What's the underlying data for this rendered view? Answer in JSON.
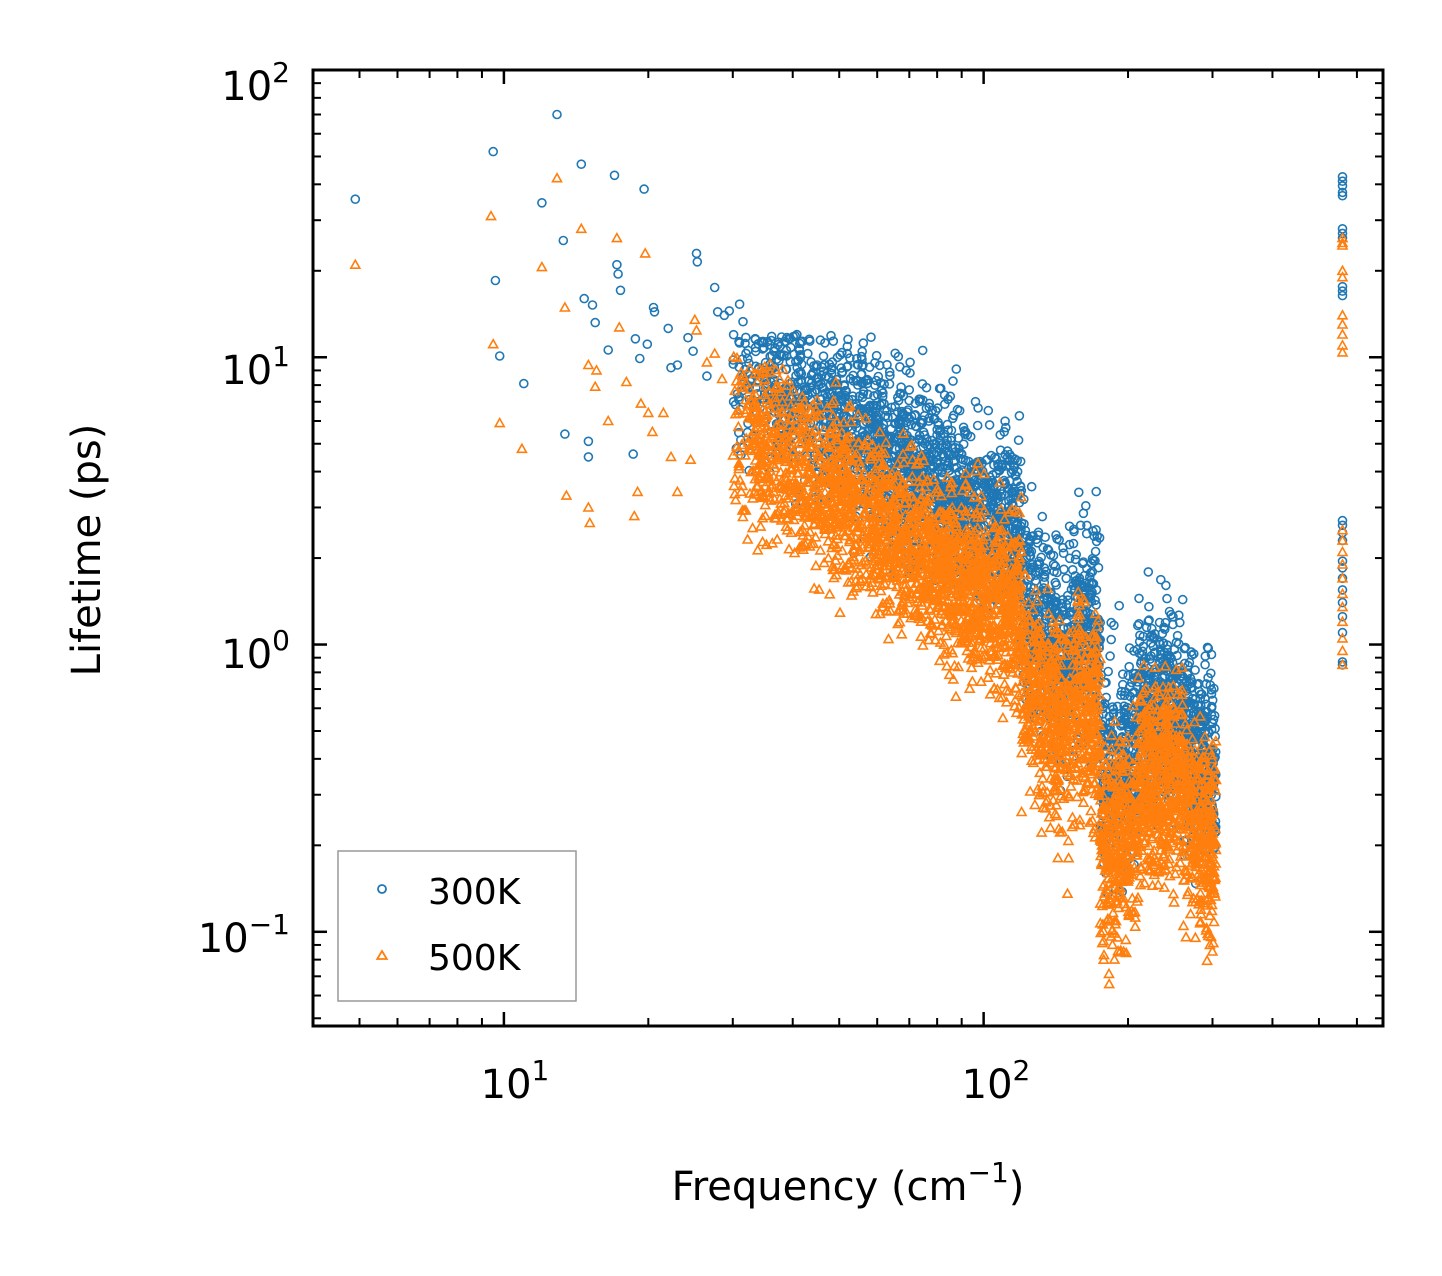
{
  "chart_data": {
    "type": "scatter",
    "title": "",
    "xlabel": "Frequency (cm",
    "xlabel_sup": "−1",
    "xlabel_end": ")",
    "ylabel": "Lifetime (ps)",
    "xscale": "log",
    "yscale": "log",
    "xlim": [
      4,
      680
    ],
    "ylim": [
      0.047,
      100
    ],
    "x_ticks": [
      {
        "value": 10,
        "base": "10",
        "exp": "1"
      },
      {
        "value": 100,
        "base": "10",
        "exp": "2"
      }
    ],
    "y_ticks": [
      {
        "value": 0.1,
        "base": "10",
        "exp": "−1"
      },
      {
        "value": 1,
        "base": "10",
        "exp": "0"
      },
      {
        "value": 10,
        "base": "10",
        "exp": "1"
      },
      {
        "value": 100,
        "base": "10",
        "exp": "2"
      }
    ],
    "legend_position": "lower-left",
    "series": [
      {
        "name": "300K",
        "marker": "circle",
        "color": "#1f77b4",
        "points": [
          [
            4.9,
            35.5
          ],
          [
            9.5,
            52
          ],
          [
            9.6,
            18.5
          ],
          [
            9.8,
            10.1
          ],
          [
            11.0,
            8.1
          ],
          [
            12.0,
            34.5
          ],
          [
            12.9,
            70
          ],
          [
            13.3,
            25.5
          ],
          [
            13.4,
            5.4
          ],
          [
            14.5,
            47
          ],
          [
            14.7,
            16
          ],
          [
            15.0,
            5.1
          ],
          [
            15.0,
            4.5
          ],
          [
            15.3,
            15.2
          ],
          [
            15.5,
            13.2
          ],
          [
            16.5,
            10.6
          ],
          [
            17.0,
            43
          ],
          [
            17.2,
            21
          ],
          [
            17.3,
            19.5
          ],
          [
            17.5,
            17.1
          ],
          [
            18.6,
            4.6
          ],
          [
            18.8,
            11.6
          ],
          [
            19.2,
            9.9
          ],
          [
            19.6,
            38.5
          ],
          [
            19.9,
            11.1
          ],
          [
            20.5,
            14.9
          ],
          [
            20.6,
            14.4
          ],
          [
            22.0,
            12.6
          ],
          [
            22.3,
            9.2
          ],
          [
            23.0,
            9.4
          ],
          [
            24.2,
            11.7
          ],
          [
            24.8,
            10.5
          ],
          [
            25.2,
            23
          ],
          [
            25.3,
            21.5
          ],
          [
            26.5,
            8.6
          ],
          [
            27.5,
            17.5
          ],
          [
            27.9,
            14.4
          ],
          [
            28.8,
            14.0
          ],
          [
            29.5,
            14.5
          ],
          [
            31.0,
            15.3
          ],
          [
            31.5,
            13.3
          ],
          [
            33.5,
            9.3
          ],
          [
            34.0,
            9.2
          ],
          [
            36.0,
            8.2
          ],
          [
            38.5,
            7.8
          ],
          [
            41.5,
            10.2
          ],
          [
            43.0,
            10.3
          ],
          [
            46.5,
            9.4
          ],
          [
            47.0,
            8.6
          ],
          [
            56.0,
            6.4
          ],
          [
            58.0,
            6.8
          ],
          [
            62.0,
            6.9
          ],
          [
            70.0,
            7.7
          ],
          [
            77.0,
            6.7
          ],
          [
            90.0,
            4.6
          ],
          [
            120.0,
            2.65
          ],
          [
            560.0,
            42.5
          ],
          [
            560.0,
            41.0
          ],
          [
            560.0,
            39.5
          ],
          [
            560.0,
            37.5
          ],
          [
            560.0,
            36.5
          ],
          [
            560.0,
            28.0
          ],
          [
            560.0,
            27.0
          ],
          [
            560.0,
            26.0
          ],
          [
            560.0,
            17.6
          ],
          [
            560.0,
            17.0
          ],
          [
            560.0,
            16.4
          ],
          [
            560.0,
            2.7
          ],
          [
            560.0,
            2.6
          ],
          [
            560.0,
            2.45
          ],
          [
            560.0,
            2.3
          ],
          [
            560.0,
            1.95
          ],
          [
            560.0,
            1.85
          ],
          [
            560.0,
            1.7
          ],
          [
            560.0,
            1.55
          ],
          [
            560.0,
            1.4
          ],
          [
            560.0,
            1.25
          ],
          [
            560.0,
            1.1
          ],
          [
            560.0,
            0.87
          ],
          [
            560.0,
            0.85
          ]
        ]
      },
      {
        "name": "500K",
        "marker": "triangle",
        "color": "#ff7f0e",
        "points": [
          [
            4.9,
            21
          ],
          [
            9.4,
            31
          ],
          [
            9.5,
            11.1
          ],
          [
            9.8,
            5.9
          ],
          [
            10.9,
            4.8
          ],
          [
            12.0,
            20.6
          ],
          [
            12.9,
            42
          ],
          [
            13.4,
            14.9
          ],
          [
            13.5,
            3.3
          ],
          [
            14.5,
            28
          ],
          [
            15.0,
            9.4
          ],
          [
            15.0,
            3.0
          ],
          [
            15.1,
            2.65
          ],
          [
            15.5,
            7.9
          ],
          [
            15.6,
            9.0
          ],
          [
            16.5,
            6.0
          ],
          [
            17.2,
            26
          ],
          [
            17.4,
            12.7
          ],
          [
            18.0,
            8.2
          ],
          [
            18.7,
            2.8
          ],
          [
            19.0,
            3.4
          ],
          [
            19.3,
            6.9
          ],
          [
            19.7,
            23
          ],
          [
            20.0,
            6.4
          ],
          [
            20.4,
            5.5
          ],
          [
            21.5,
            6.4
          ],
          [
            22.3,
            4.5
          ],
          [
            23.0,
            3.4
          ],
          [
            24.5,
            4.4
          ],
          [
            25.0,
            13.5
          ],
          [
            25.2,
            12.4
          ],
          [
            26.5,
            9.6
          ],
          [
            27.5,
            10.3
          ],
          [
            28.5,
            8.4
          ],
          [
            31.5,
            8.6
          ],
          [
            33.0,
            5.0
          ],
          [
            35.0,
            7.4
          ],
          [
            37.0,
            5.8
          ],
          [
            44.0,
            6.2
          ],
          [
            48.0,
            3.9
          ]
        ]
      }
    ]
  },
  "legend": {
    "items": [
      {
        "label": "300K"
      },
      {
        "label": "500K"
      }
    ]
  }
}
